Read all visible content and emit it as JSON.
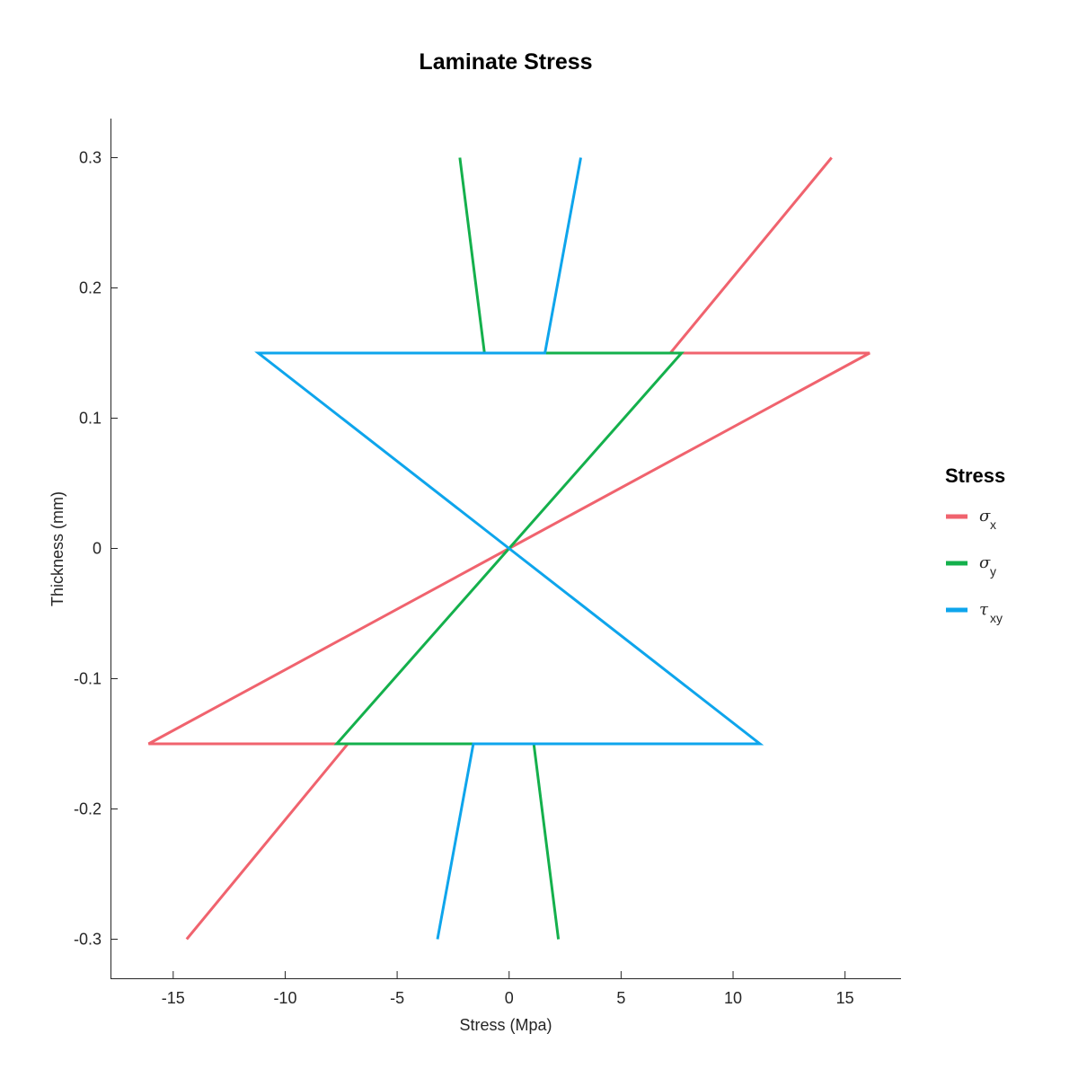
{
  "chart_data": {
    "type": "line",
    "title": "Laminate Stress",
    "xlabel": "Stress (Mpa)",
    "ylabel": "Thickness (mm)",
    "xlim": [
      -17.8,
      17.5
    ],
    "ylim": [
      -0.33,
      0.33
    ],
    "xticks": [
      -15,
      -10,
      -5,
      0,
      5,
      10,
      15
    ],
    "xtick_labels": [
      "-15",
      "-10",
      "-5",
      "0",
      "5",
      "10",
      "15"
    ],
    "yticks": [
      -0.3,
      -0.2,
      -0.1,
      0,
      0.1,
      0.2,
      0.3
    ],
    "ytick_labels": [
      "-0.3",
      "-0.2",
      "-0.1",
      "0",
      "0.1",
      "0.2",
      "0.3"
    ],
    "grid": false,
    "legend": {
      "title": "Stress",
      "placement": "right",
      "entries": [
        {
          "symbol": "σ",
          "subscript": "x"
        },
        {
          "symbol": "σ",
          "subscript": "y"
        },
        {
          "symbol": "τ",
          "subscript": "xy"
        }
      ]
    },
    "series": [
      {
        "color": "#F0636E",
        "points": [
          [
            -14.4,
            -0.3
          ],
          [
            -7.2,
            -0.15
          ],
          [
            -16.1,
            -0.15
          ],
          [
            0,
            0
          ],
          [
            16.1,
            0.15
          ],
          [
            7.2,
            0.15
          ],
          [
            14.4,
            0.3
          ]
        ]
      },
      {
        "color": "#14B04C",
        "points": [
          [
            2.2,
            -0.3
          ],
          [
            1.1,
            -0.15
          ],
          [
            -7.7,
            -0.15
          ],
          [
            0,
            0
          ],
          [
            7.7,
            0.15
          ],
          [
            -1.1,
            0.15
          ],
          [
            -2.2,
            0.3
          ]
        ]
      },
      {
        "color": "#0EA5EC",
        "points": [
          [
            -3.2,
            -0.3
          ],
          [
            -1.6,
            -0.15
          ],
          [
            11.2,
            -0.15
          ],
          [
            0,
            0
          ],
          [
            -11.2,
            0.15
          ],
          [
            1.6,
            0.15
          ],
          [
            3.2,
            0.3
          ]
        ]
      }
    ]
  }
}
